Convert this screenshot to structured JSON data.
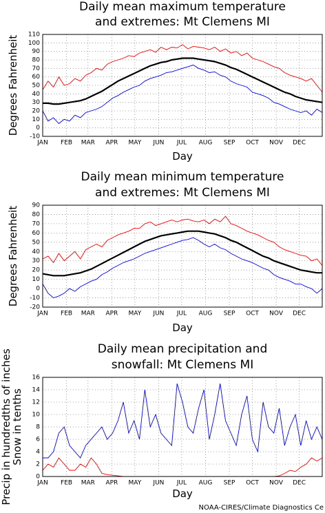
{
  "chart_data": [
    {
      "type": "line",
      "title": [
        "Daily mean maximum temperature",
        "and extremes: Mt Clemens MI"
      ],
      "ylabel": [
        "Degrees Fahrenheit"
      ],
      "xlabel": "Day",
      "xlim": [
        1,
        365
      ],
      "ylim": [
        -10,
        110
      ],
      "yticks": [
        -10,
        0,
        10,
        20,
        30,
        40,
        50,
        60,
        70,
        80,
        90,
        100,
        110
      ],
      "xticks": [
        {
          "value": 1,
          "label": "JAN"
        },
        {
          "value": 32,
          "label": "FEB"
        },
        {
          "value": 60,
          "label": "MAR"
        },
        {
          "value": 91,
          "label": "APR"
        },
        {
          "value": 121,
          "label": "MAY"
        },
        {
          "value": 152,
          "label": "JUN"
        },
        {
          "value": 182,
          "label": "JUL"
        },
        {
          "value": 213,
          "label": "AUG"
        },
        {
          "value": 244,
          "label": "SEP"
        },
        {
          "value": 274,
          "label": "OCT"
        },
        {
          "value": 305,
          "label": "NOV"
        },
        {
          "value": 335,
          "label": "DEC"
        }
      ],
      "grid": true,
      "x": [
        1,
        8,
        15,
        22,
        29,
        36,
        43,
        50,
        57,
        64,
        71,
        78,
        85,
        92,
        99,
        106,
        113,
        120,
        127,
        134,
        141,
        148,
        155,
        162,
        169,
        176,
        183,
        190,
        197,
        204,
        211,
        218,
        225,
        232,
        239,
        246,
        253,
        260,
        267,
        274,
        281,
        288,
        295,
        302,
        309,
        316,
        323,
        330,
        337,
        344,
        351,
        358,
        365
      ],
      "series": [
        {
          "color": "#ff0000",
          "values": [
            45,
            55,
            48,
            60,
            50,
            52,
            58,
            55,
            62,
            65,
            70,
            68,
            75,
            78,
            80,
            82,
            85,
            84,
            88,
            90,
            92,
            89,
            95,
            92,
            95,
            94,
            98,
            93,
            96,
            95,
            94,
            92,
            95,
            90,
            93,
            88,
            90,
            85,
            88,
            82,
            80,
            78,
            75,
            72,
            70,
            65,
            62,
            60,
            58,
            55,
            58,
            50,
            42
          ]
        },
        {
          "color": "#000000",
          "values": [
            29,
            29,
            28,
            28,
            29,
            30,
            31,
            32,
            34,
            37,
            40,
            43,
            47,
            51,
            55,
            58,
            61,
            64,
            67,
            70,
            73,
            75,
            77,
            78,
            80,
            81,
            82,
            82,
            82,
            81,
            80,
            79,
            78,
            76,
            74,
            71,
            69,
            66,
            63,
            60,
            57,
            54,
            51,
            48,
            45,
            42,
            40,
            37,
            35,
            33,
            32,
            31,
            30
          ]
        },
        {
          "color": "#0000ff",
          "values": [
            20,
            8,
            12,
            5,
            10,
            8,
            15,
            12,
            18,
            20,
            22,
            25,
            30,
            35,
            38,
            42,
            45,
            48,
            50,
            55,
            58,
            60,
            62,
            65,
            66,
            68,
            70,
            72,
            74,
            70,
            68,
            65,
            66,
            62,
            60,
            55,
            52,
            50,
            48,
            42,
            40,
            38,
            35,
            30,
            28,
            25,
            22,
            20,
            18,
            20,
            15,
            22,
            18
          ]
        }
      ]
    },
    {
      "type": "line",
      "title": [
        "Daily mean minimum temperature",
        "and extremes: Mt Clemens MI"
      ],
      "ylabel": [
        "Degrees Fahrenheit"
      ],
      "xlabel": "Day",
      "xlim": [
        1,
        365
      ],
      "ylim": [
        -20,
        90
      ],
      "yticks": [
        -20,
        -10,
        0,
        10,
        20,
        30,
        40,
        50,
        60,
        70,
        80,
        90
      ],
      "xticks": [
        {
          "value": 1,
          "label": "JAN"
        },
        {
          "value": 32,
          "label": "FEB"
        },
        {
          "value": 60,
          "label": "MAR"
        },
        {
          "value": 91,
          "label": "APR"
        },
        {
          "value": 121,
          "label": "MAY"
        },
        {
          "value": 152,
          "label": "JUN"
        },
        {
          "value": 182,
          "label": "JUL"
        },
        {
          "value": 213,
          "label": "AUG"
        },
        {
          "value": 244,
          "label": "SEP"
        },
        {
          "value": 274,
          "label": "OCT"
        },
        {
          "value": 305,
          "label": "NOV"
        },
        {
          "value": 335,
          "label": "DEC"
        }
      ],
      "grid": true,
      "x": [
        1,
        8,
        15,
        22,
        29,
        36,
        43,
        50,
        57,
        64,
        71,
        78,
        85,
        92,
        99,
        106,
        113,
        120,
        127,
        134,
        141,
        148,
        155,
        162,
        169,
        176,
        183,
        190,
        197,
        204,
        211,
        218,
        225,
        232,
        239,
        246,
        253,
        260,
        267,
        274,
        281,
        288,
        295,
        302,
        309,
        316,
        323,
        330,
        337,
        344,
        351,
        358,
        365
      ],
      "series": [
        {
          "color": "#ff0000",
          "values": [
            32,
            35,
            28,
            38,
            30,
            35,
            40,
            32,
            42,
            45,
            48,
            45,
            52,
            55,
            58,
            60,
            62,
            65,
            65,
            70,
            72,
            68,
            70,
            72,
            74,
            72,
            74,
            75,
            73,
            72,
            74,
            70,
            75,
            72,
            78,
            70,
            68,
            65,
            62,
            60,
            58,
            55,
            52,
            50,
            45,
            42,
            40,
            38,
            36,
            35,
            30,
            32,
            25
          ]
        },
        {
          "color": "#000000",
          "values": [
            16,
            15,
            14,
            14,
            14,
            15,
            16,
            17,
            19,
            21,
            24,
            27,
            30,
            33,
            36,
            39,
            42,
            45,
            48,
            51,
            53,
            55,
            57,
            58,
            59,
            60,
            61,
            62,
            62,
            62,
            61,
            60,
            59,
            57,
            55,
            52,
            50,
            47,
            44,
            41,
            38,
            35,
            33,
            30,
            28,
            26,
            24,
            22,
            20,
            19,
            18,
            17,
            17
          ]
        },
        {
          "color": "#0000ff",
          "values": [
            5,
            -5,
            -10,
            -8,
            -5,
            0,
            -3,
            2,
            5,
            8,
            10,
            15,
            18,
            22,
            25,
            28,
            30,
            32,
            35,
            38,
            40,
            42,
            44,
            46,
            48,
            50,
            52,
            53,
            55,
            52,
            48,
            45,
            48,
            44,
            42,
            38,
            35,
            32,
            30,
            28,
            25,
            22,
            20,
            15,
            12,
            10,
            8,
            5,
            5,
            2,
            0,
            -5,
            0
          ]
        }
      ]
    },
    {
      "type": "line",
      "title": [
        "Daily mean precipitation and",
        "snowfall: Mt Clemens MI"
      ],
      "ylabel": [
        "Precip in hundredths of inches",
        "Snow in tenths"
      ],
      "xlabel": "Day",
      "xlim": [
        1,
        365
      ],
      "ylim": [
        0,
        16
      ],
      "yticks": [
        0,
        2,
        4,
        6,
        8,
        10,
        12,
        14,
        16
      ],
      "xticks": [
        {
          "value": 1,
          "label": "JAN"
        },
        {
          "value": 32,
          "label": "FEB"
        },
        {
          "value": 60,
          "label": "MAR"
        },
        {
          "value": 91,
          "label": "APR"
        },
        {
          "value": 121,
          "label": "MAY"
        },
        {
          "value": 152,
          "label": "JUN"
        },
        {
          "value": 182,
          "label": "JUL"
        },
        {
          "value": 213,
          "label": "AUG"
        },
        {
          "value": 244,
          "label": "SEP"
        },
        {
          "value": 274,
          "label": "OCT"
        },
        {
          "value": 305,
          "label": "NOV"
        },
        {
          "value": 335,
          "label": "DEC"
        }
      ],
      "grid": true,
      "x": [
        1,
        8,
        15,
        22,
        29,
        36,
        43,
        50,
        57,
        64,
        71,
        78,
        85,
        92,
        99,
        106,
        113,
        120,
        127,
        134,
        141,
        148,
        155,
        162,
        169,
        176,
        183,
        190,
        197,
        204,
        211,
        218,
        225,
        232,
        239,
        246,
        253,
        260,
        267,
        274,
        281,
        288,
        295,
        302,
        309,
        316,
        323,
        330,
        337,
        344,
        351,
        358,
        365
      ],
      "series": [
        {
          "color": "#0000ff",
          "values": [
            3,
            3,
            4,
            7,
            8,
            5,
            4,
            3,
            5,
            6,
            7,
            8,
            6,
            7,
            9,
            12,
            7,
            9,
            6,
            14,
            8,
            10,
            7,
            6,
            5,
            15,
            12,
            8,
            7,
            11,
            14,
            6,
            10,
            15,
            9,
            7,
            5,
            10,
            13,
            6,
            4,
            12,
            8,
            7,
            11,
            5,
            8,
            10,
            5,
            9,
            6,
            8,
            6
          ]
        },
        {
          "color": "#ff0000",
          "values": [
            1,
            2,
            1.5,
            3,
            2,
            1,
            1,
            2,
            1.5,
            3,
            2,
            0.5,
            0.3,
            0.2,
            0.1,
            0,
            0,
            0,
            0,
            0,
            0,
            0,
            0,
            0,
            0,
            0,
            0,
            0,
            0,
            0,
            0,
            0,
            0,
            0,
            0,
            0,
            0,
            0,
            0,
            0,
            0,
            0,
            0,
            0,
            0.1,
            0.5,
            1,
            0.8,
            1.5,
            2,
            3,
            2.5,
            3
          ]
        }
      ]
    }
  ],
  "credit": "NOAA-CIRES/Climate Diagnostics Ce"
}
